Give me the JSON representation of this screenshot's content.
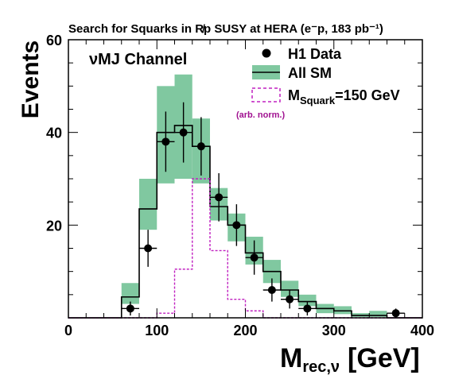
{
  "chart_data": {
    "type": "histogram",
    "title": "Search for Squarks in R̸p SUSY at HERA (e⁻p, 183 pb⁻¹)",
    "channel_label": "νMJ Channel",
    "ylabel": "Events",
    "xlabel": "M",
    "xlabel_sub": "rec,ν",
    "xlabel_unit": "[GeV]",
    "xlim": [
      0,
      400
    ],
    "ylim": [
      0,
      60
    ],
    "x_ticks": [
      0,
      100,
      200,
      300,
      400
    ],
    "y_ticks": [
      20,
      40,
      60
    ],
    "bin_edges": [
      0,
      20,
      40,
      60,
      80,
      100,
      120,
      140,
      160,
      180,
      200,
      220,
      240,
      260,
      280,
      300,
      320,
      340,
      360,
      380,
      400
    ],
    "legend": {
      "data": "H1 Data",
      "sm": "All SM",
      "signal_main": "M",
      "signal_sub": "Squark",
      "signal_tail": "=150 GeV",
      "signal_note": "(arb. norm.)"
    },
    "series": [
      {
        "name": "All SM",
        "style": "step",
        "values": [
          0,
          0,
          0,
          4.5,
          23.5,
          40,
          41.5,
          37,
          24,
          20,
          14,
          10,
          6,
          3.5,
          2,
          1.5,
          0.5,
          0.5,
          0,
          0
        ]
      },
      {
        "name": "All SM uncertainty",
        "style": "band",
        "low": [
          0,
          0,
          0,
          3,
          19,
          29,
          30,
          29,
          21,
          16.5,
          11.5,
          7.5,
          4.5,
          2.5,
          1,
          0.8,
          0.2,
          0.2,
          0,
          0
        ],
        "high": [
          0,
          0,
          0,
          7.5,
          30,
          50,
          52.5,
          43,
          28,
          22.5,
          17.5,
          12.5,
          8,
          5,
          3,
          2.5,
          1,
          1.5,
          0,
          0
        ]
      },
      {
        "name": "M_Squark=150 GeV",
        "style": "dashed-step",
        "values": [
          0,
          0,
          0,
          0,
          0,
          1,
          10.5,
          30,
          14.5,
          4,
          1.5,
          0,
          0,
          0,
          0,
          0,
          0,
          0,
          0,
          0
        ]
      },
      {
        "name": "H1 Data",
        "style": "points",
        "x": [
          70,
          90,
          110,
          130,
          150,
          170,
          190,
          210,
          230,
          250,
          270,
          370
        ],
        "y": [
          2,
          15,
          38,
          40,
          37,
          26,
          20,
          13,
          6,
          4,
          2,
          1
        ],
        "yerr": [
          1.5,
          4,
          6.5,
          6.5,
          6.3,
          5.2,
          4.5,
          3.7,
          2.5,
          2,
          1.5,
          1
        ]
      }
    ],
    "colors": {
      "band": "#80c8a0",
      "sm_line": "#000000",
      "signal": "#c020c0",
      "note": "#a01090",
      "data": "#000000"
    }
  }
}
